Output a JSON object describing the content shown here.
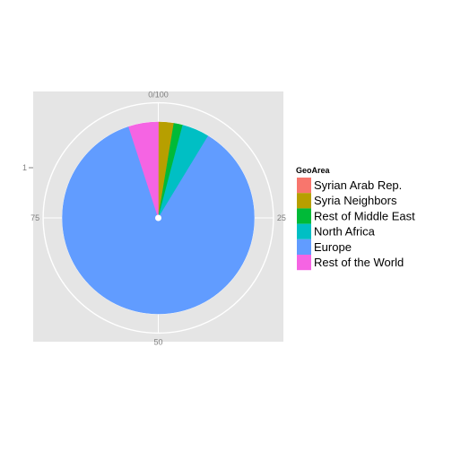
{
  "chart_data": {
    "type": "pie",
    "title": "",
    "legend": {
      "title": "GeoArea",
      "placement": "right"
    },
    "y_tick_label": "1",
    "angle_ticks": [
      {
        "value": 0,
        "label": "0/100"
      },
      {
        "value": 25,
        "label": "25"
      },
      {
        "value": 50,
        "label": "50"
      },
      {
        "value": 75,
        "label": "75"
      }
    ],
    "slices": [
      {
        "name": "Syrian Arab Rep.",
        "value": 0.1,
        "color": "#F8766D"
      },
      {
        "name": "Syria Neighbors",
        "value": 2.5,
        "color": "#B79F00"
      },
      {
        "name": "Rest of Middle East",
        "value": 1.5,
        "color": "#00BA38"
      },
      {
        "name": "North Africa",
        "value": 4.6,
        "color": "#00BFC4"
      },
      {
        "name": "Europe",
        "value": 86.3,
        "color": "#619CFF"
      },
      {
        "name": "Rest of the World",
        "value": 5.0,
        "color": "#F564E3"
      }
    ]
  }
}
